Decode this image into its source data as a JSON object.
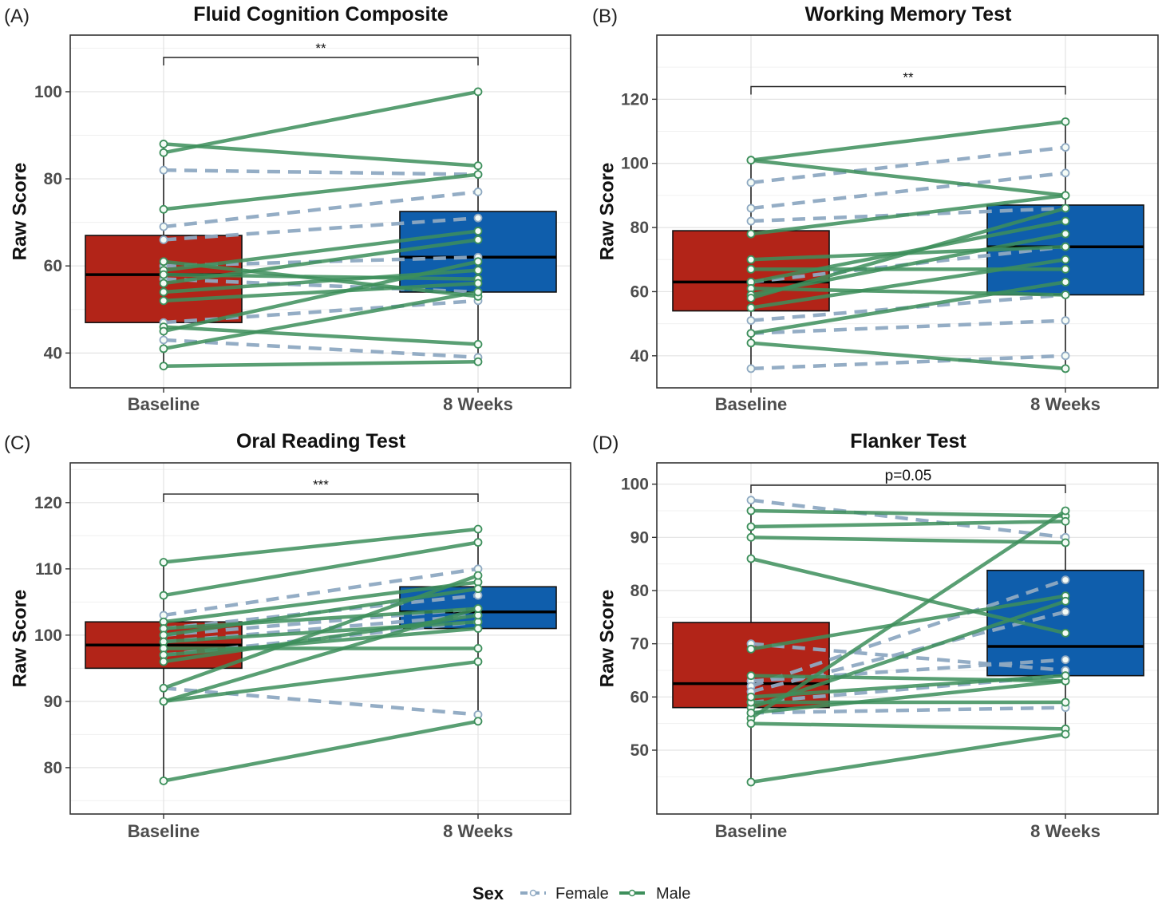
{
  "chart_data": [
    {
      "panel_label": "(A)",
      "title": "Fluid Cognition Composite",
      "type": "box+paired-lines",
      "ylabel": "Raw Score",
      "categories": [
        "Baseline",
        "8 Weeks"
      ],
      "ylim": [
        32,
        113
      ],
      "yticks": [
        40,
        60,
        80,
        100
      ],
      "significance": "**",
      "boxes": [
        {
          "q1": 47,
          "median": 58,
          "q3": 67,
          "whisker_low": 37,
          "whisker_high": 88,
          "color": "#b22418"
        },
        {
          "q1": 54,
          "median": 62,
          "q3": 72.5,
          "whisker_low": 38,
          "whisker_high": 100,
          "color": "#0f5eac"
        }
      ],
      "series": [
        {
          "name": "Female",
          "pairs": [
            [
              82,
              81
            ],
            [
              69,
              77
            ],
            [
              66,
              71
            ],
            [
              60,
              62
            ],
            [
              57,
              54
            ],
            [
              47,
              52
            ],
            [
              43,
              39
            ]
          ]
        },
        {
          "name": "Male",
          "pairs": [
            [
              88,
              83
            ],
            [
              86,
              100
            ],
            [
              73,
              81
            ],
            [
              61,
              53
            ],
            [
              59,
              68
            ],
            [
              58,
              57
            ],
            [
              56,
              66
            ],
            [
              54,
              59
            ],
            [
              52,
              56
            ],
            [
              46,
              42
            ],
            [
              45,
              61
            ],
            [
              41,
              54
            ],
            [
              37,
              38
            ]
          ]
        }
      ]
    },
    {
      "panel_label": "(B)",
      "title": "Working Memory Test",
      "type": "box+paired-lines",
      "ylabel": "Raw Score",
      "categories": [
        "Baseline",
        "8 Weeks"
      ],
      "ylim": [
        30,
        140
      ],
      "yticks": [
        40,
        60,
        80,
        100,
        120
      ],
      "significance": "**",
      "boxes": [
        {
          "q1": 54,
          "median": 63,
          "q3": 79,
          "whisker_low": 36,
          "whisker_high": 101,
          "color": "#b22418"
        },
        {
          "q1": 59,
          "median": 74,
          "q3": 87,
          "whisker_low": 36,
          "whisker_high": 113,
          "color": "#0f5eac"
        }
      ],
      "series": [
        {
          "name": "Female",
          "pairs": [
            [
              94,
              105
            ],
            [
              86,
              97
            ],
            [
              82,
              86
            ],
            [
              63,
              74
            ],
            [
              51,
              59
            ],
            [
              47,
              51
            ],
            [
              36,
              40
            ]
          ]
        },
        {
          "name": "Male",
          "pairs": [
            [
              101,
              113
            ],
            [
              101,
              90
            ],
            [
              78,
              90
            ],
            [
              70,
              74
            ],
            [
              67,
              67
            ],
            [
              63,
              82
            ],
            [
              61,
              59
            ],
            [
              59,
              78
            ],
            [
              58,
              86
            ],
            [
              55,
              70
            ],
            [
              47,
              63
            ],
            [
              44,
              36
            ]
          ]
        }
      ]
    },
    {
      "panel_label": "(C)",
      "title": "Oral Reading Test",
      "type": "box+paired-lines",
      "ylabel": "Raw Score",
      "categories": [
        "Baseline",
        "8 Weeks"
      ],
      "ylim": [
        73,
        126
      ],
      "yticks": [
        80,
        90,
        100,
        110,
        120
      ],
      "significance": "***",
      "boxes": [
        {
          "q1": 95,
          "median": 98.5,
          "q3": 102,
          "whisker_low": 78,
          "whisker_high": 111,
          "color": "#b22418"
        },
        {
          "q1": 101,
          "median": 103.5,
          "q3": 107.3,
          "whisker_low": 87,
          "whisker_high": 116,
          "color": "#0f5eac"
        }
      ],
      "series": [
        {
          "name": "Female",
          "pairs": [
            [
              103,
              110
            ],
            [
              101,
              106
            ],
            [
              100,
              104
            ],
            [
              99,
              103
            ],
            [
              97,
              102
            ],
            [
              92,
              88
            ]
          ]
        },
        {
          "name": "Male",
          "pairs": [
            [
              111,
              116
            ],
            [
              106,
              114
            ],
            [
              102,
              108
            ],
            [
              101,
              104
            ],
            [
              100,
              107
            ],
            [
              99,
              102
            ],
            [
              98,
              98
            ],
            [
              97,
              101
            ],
            [
              96,
              103
            ],
            [
              92,
              109
            ],
            [
              90,
              96
            ],
            [
              90,
              104
            ],
            [
              78,
              87
            ]
          ]
        }
      ]
    },
    {
      "panel_label": "(D)",
      "title": "Flanker Test",
      "type": "box+paired-lines",
      "ylabel": "Raw Score",
      "categories": [
        "Baseline",
        "8 Weeks"
      ],
      "ylim": [
        38,
        104
      ],
      "yticks": [
        50,
        60,
        70,
        80,
        90,
        100
      ],
      "significance": "p=0.05",
      "boxes": [
        {
          "q1": 58,
          "median": 62.5,
          "q3": 74,
          "whisker_low": 44,
          "whisker_high": 97,
          "color": "#b22418"
        },
        {
          "q1": 64,
          "median": 69.5,
          "q3": 83.8,
          "whisker_low": 53,
          "whisker_high": 95,
          "color": "#0f5eac"
        }
      ],
      "series": [
        {
          "name": "Female",
          "pairs": [
            [
              97,
              90
            ],
            [
              70,
              65
            ],
            [
              63,
              67
            ],
            [
              62,
              82
            ],
            [
              61,
              76
            ],
            [
              59,
              64
            ],
            [
              57,
              58
            ]
          ]
        },
        {
          "name": "Male",
          "pairs": [
            [
              95,
              94
            ],
            [
              92,
              93
            ],
            [
              90,
              89
            ],
            [
              86,
              72
            ],
            [
              69,
              79
            ],
            [
              64,
              63
            ],
            [
              58,
              78
            ],
            [
              56,
              95
            ],
            [
              55,
              54
            ],
            [
              44,
              53
            ],
            [
              59,
              59
            ],
            [
              57,
              63
            ],
            [
              60,
              64
            ]
          ]
        }
      ]
    }
  ],
  "legend": {
    "title": "Sex",
    "items": [
      {
        "label": "Female",
        "color": "#8fa9c2"
      },
      {
        "label": "Male",
        "color": "#3d8f5b"
      }
    ]
  }
}
